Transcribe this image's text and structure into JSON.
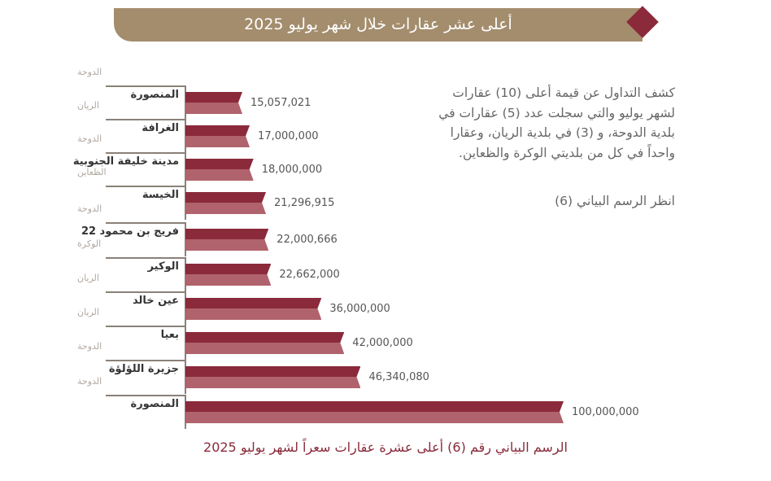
{
  "header": {
    "title": "أعلى عشر عقارات خلال شهر يوليو 2025"
  },
  "description": {
    "text": "كشف التداول عن قيمة أعلى (10) عقارات لشهر يوليو والتي سجلت عدد (5) عقارات في بلدية الدوحة، و (3) في بلدية الريان، وعقارا واحداً في كل من  بلديتي الوكرة والظعاين.",
    "reference": "انظر الرسم البياني (6)"
  },
  "caption": "الرسم البياني رقم (6) أعلى عشرة عقارات سعراً لشهر يوليو 2025",
  "colors": {
    "bar_dark": "#8a2a3a",
    "bar_light": "#b0636c",
    "banner": "#a38d6d"
  },
  "chart_data": {
    "type": "bar",
    "orientation": "horizontal",
    "categories": [
      "المنصورة",
      "الغرافة",
      "مدينة خليفة الجنوبية",
      "الخيسة",
      "فريج بن محمود 22",
      "الوكير",
      "عين خالد",
      "بعيا",
      "جزيرة اللؤلؤة",
      "المنصورة"
    ],
    "municipalities": [
      "الدوحة",
      "الريان",
      "الدوحة",
      "الظعاين",
      "الدوحة",
      "الوكرة",
      "الريان",
      "الريان",
      "الدوحة",
      "الدوحة"
    ],
    "values": [
      15057021,
      17000000,
      18000000,
      21296915,
      22000666,
      22662000,
      36000000,
      42000000,
      46340080,
      100000000
    ],
    "value_labels": [
      "15,057,021",
      "17,000,000",
      "18,000,000",
      "21,296,915",
      "22,000,666",
      "22,662,000",
      "36,000,000",
      "42,000,000",
      "46,340,080",
      "100,000,000"
    ],
    "xlim": [
      0,
      100000000
    ]
  }
}
